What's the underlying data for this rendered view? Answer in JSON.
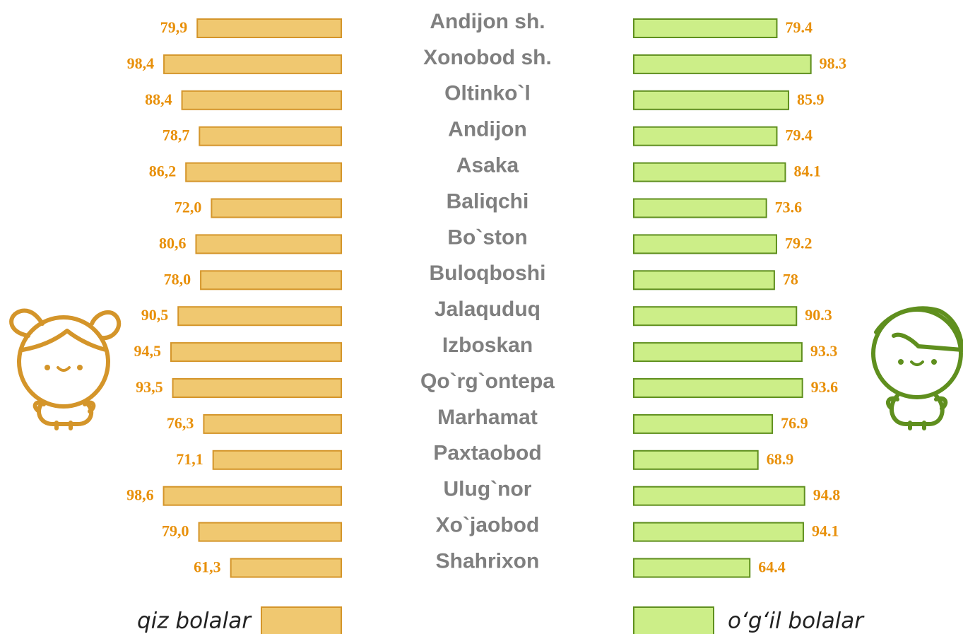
{
  "chart_data": {
    "type": "butterfly",
    "categories": [
      "Andijon sh.",
      "Xonobod sh.",
      "Oltinko`l",
      "Andijon",
      "Asaka",
      "Baliqchi",
      "Bo`ston",
      "Buloqboshi",
      "Jalaquduq",
      "Izboskan",
      "Qo`rg`ontepa",
      "Marhamat",
      "Paxtaobod",
      "Ulug`nor",
      "Xo`jaobod",
      "Shahrixon"
    ],
    "series": [
      {
        "name": "qiz bolalar",
        "color": "#f0c870",
        "edge": "#d4952a",
        "values": [
          79.9,
          98.4,
          88.4,
          78.7,
          86.2,
          72.0,
          80.6,
          78.0,
          90.5,
          94.5,
          93.5,
          76.3,
          71.1,
          98.6,
          79.0,
          61.3
        ],
        "value_labels": [
          "79,9",
          "98,4",
          "88,4",
          "78,7",
          "86,2",
          "72,0",
          "80,6",
          "78,0",
          "90,5",
          "94,5",
          "93,5",
          "76,3",
          "71,1",
          "98,6",
          "79,0",
          "61,3"
        ]
      },
      {
        "name": "o‘g‘il bolalar",
        "color": "#ccee88",
        "edge": "#5f8f1e",
        "values": [
          79.4,
          98.3,
          85.9,
          79.4,
          84.1,
          73.6,
          79.2,
          78,
          90.3,
          93.3,
          93.6,
          76.9,
          68.9,
          94.8,
          94.1,
          64.4
        ]
      }
    ]
  }
}
